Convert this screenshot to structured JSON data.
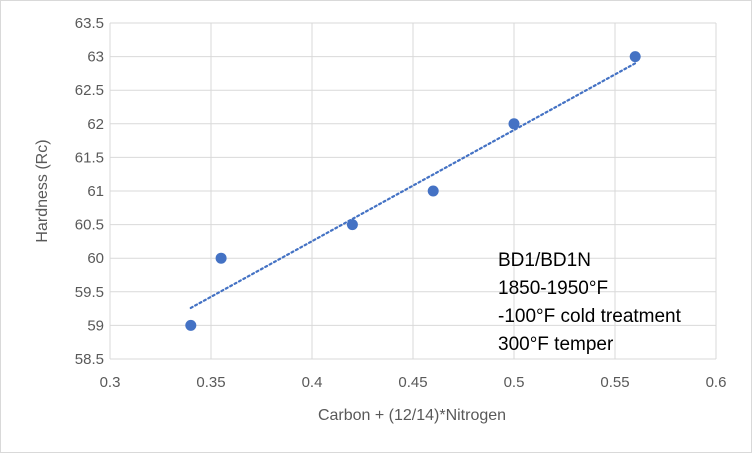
{
  "chart_data": {
    "type": "scatter",
    "title": "",
    "xlabel": "Carbon + (12/14)*Nitrogen",
    "ylabel": "Hardness (Rc)",
    "xlim": [
      0.3,
      0.6
    ],
    "ylim": [
      58.5,
      63.5
    ],
    "x_ticks": [
      "0.3",
      "0.35",
      "0.4",
      "0.45",
      "0.5",
      "0.55",
      "0.6"
    ],
    "y_ticks": [
      "58.5",
      "59",
      "59.5",
      "60",
      "60.5",
      "61",
      "61.5",
      "62",
      "62.5",
      "63",
      "63.5"
    ],
    "grid": true,
    "legend": "none",
    "series": [
      {
        "color": "#4472c4",
        "points": [
          {
            "x": 0.34,
            "y": 59
          },
          {
            "x": 0.355,
            "y": 60
          },
          {
            "x": 0.42,
            "y": 60.5
          },
          {
            "x": 0.46,
            "y": 61
          },
          {
            "x": 0.5,
            "y": 62
          },
          {
            "x": 0.56,
            "y": 63
          }
        ]
      }
    ],
    "trendline": {
      "type": "linear",
      "style": "dotted",
      "color": "#4472c4",
      "x_start": 0.34,
      "y_start": 59.26,
      "x_end": 0.56,
      "y_end": 62.9
    },
    "annotation_lines": [
      "BD1/BD1N",
      "1850-1950°F",
      "-100°F cold treatment",
      "300°F temper"
    ],
    "colors": {
      "gridline": "#d9d9d9",
      "text": "#595959",
      "marker": "#4472c4"
    }
  }
}
